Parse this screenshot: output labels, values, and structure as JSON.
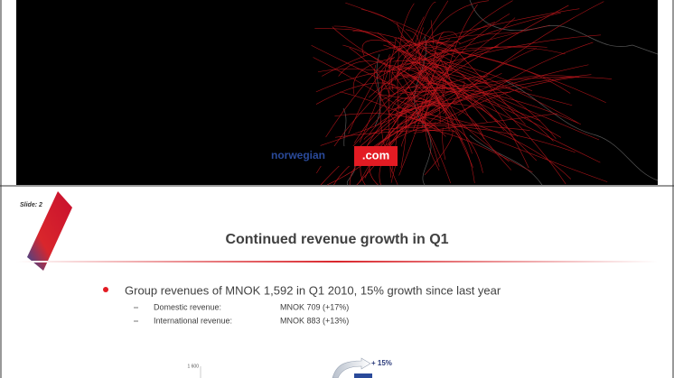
{
  "top_slide": {
    "logo": {
      "name": "norwegian",
      "domain": ".com"
    }
  },
  "slide": {
    "number_label": "Slide: 2",
    "title": "Continued revenue growth in Q1",
    "bullet": "Group revenues of MNOK 1,592 in Q1 2010, 15% growth since last year",
    "sub_items": [
      {
        "label": "Domestic revenue:",
        "value": "MNOK 709 (+17%)"
      },
      {
        "label": "International revenue:",
        "value": "MNOK 883 (+13%)"
      }
    ],
    "chart_fragment": {
      "axis_label": "1 600",
      "growth_label": "+ 15%"
    }
  }
}
